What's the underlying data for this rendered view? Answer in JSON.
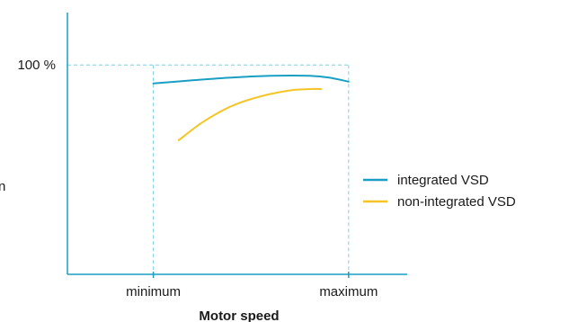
{
  "chart_data": {
    "type": "line",
    "xlabel": "Motor speed",
    "ylabel": "",
    "x_ticks": [
      {
        "value": 0,
        "label": "minimum"
      },
      {
        "value": 1,
        "label": "maximum"
      }
    ],
    "y_ticks": [
      {
        "value": 100,
        "label": "100 %"
      }
    ],
    "xlim": [
      -0.44,
      1.3
    ],
    "ylim": [
      40,
      115
    ],
    "reference_lines": "dashed guides at minimum, maximum and 100 %",
    "legend_position": "right",
    "series": [
      {
        "name": "integrated VSD",
        "color": "#1a9fc4",
        "x": [
          0,
          0.2,
          0.4,
          0.6,
          0.8,
          0.9,
          1.0
        ],
        "y": [
          94.7,
          95.6,
          96.4,
          96.9,
          96.9,
          96.4,
          95.2
        ]
      },
      {
        "name": "non-integrated VSD",
        "color": "#f5c526",
        "x": [
          0.13,
          0.25,
          0.4,
          0.55,
          0.7,
          0.8,
          0.86
        ],
        "y": [
          78.4,
          83.5,
          88.2,
          91.0,
          92.7,
          93.1,
          93.1
        ]
      }
    ]
  },
  "stray_text": "n"
}
